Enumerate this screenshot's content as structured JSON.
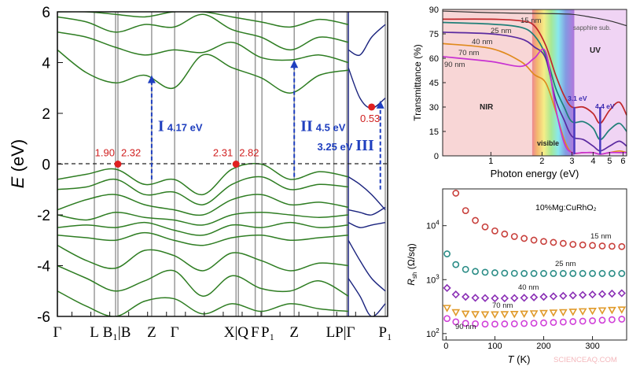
{
  "chart_data": [
    {
      "type": "line",
      "ylabel": "E (eV)",
      "ylabel_main": "E",
      "ylabel_unit": " (eV)",
      "ylim": [
        -6,
        6
      ],
      "yticks": [
        "6",
        "4",
        "2",
        "0",
        "-2",
        "-4",
        "-6"
      ],
      "kpath_labels": [
        {
          "label": "Γ",
          "k": 0
        },
        {
          "label": "L",
          "k": 12.7
        },
        {
          "label": "B₁|B",
          "k": 20.4
        },
        {
          "label": "Z",
          "k": 32.4
        },
        {
          "label": "Γ",
          "k": 40.3
        },
        {
          "label": "X|Q",
          "k": 61.8
        },
        {
          "label": "F",
          "k": 68
        },
        {
          "label": "P₁",
          "k": 70.3
        },
        {
          "label": "Z",
          "k": 81.4
        },
        {
          "label": "LP|Γ",
          "k": 97.3
        },
        {
          "label": "P₁",
          "k": 112.7
        }
      ],
      "high_symmetry_k": [
        0,
        12.7,
        20,
        20.8,
        32.4,
        40.3,
        61.4,
        62.2,
        68,
        70.3,
        81.4,
        95,
        99.5,
        100,
        112.7
      ],
      "xlim": [
        0,
        113.5
      ],
      "fermi_level": 0,
      "colors": {
        "bands_main": "#2e7d22",
        "bands_second": "#1a237e",
        "arrows": "#1f3fbf",
        "points": "#e02020"
      },
      "bands_main_k": [
        0,
        10,
        20,
        30,
        40,
        50,
        60,
        70,
        80,
        90,
        100
      ],
      "bands_main": [
        [
          6.0,
          6.0,
          5.9,
          5.8,
          6.0,
          6.0,
          5.8,
          5.6,
          5.4,
          5.7,
          5.5
        ],
        [
          5.8,
          5.6,
          5.2,
          5.5,
          5.4,
          5.9,
          5.3,
          5.0,
          4.5,
          5.0,
          4.8
        ],
        [
          5.2,
          5.0,
          4.6,
          4.3,
          4.5,
          4.4,
          4.8,
          4.2,
          4.1,
          4.3,
          4.0
        ],
        [
          4.5,
          3.6,
          3.2,
          3.5,
          3.0,
          4.3,
          3.8,
          3.4,
          2.8,
          3.5,
          3.7
        ],
        [
          -0.6,
          -0.4,
          -0.2,
          -0.8,
          -0.6,
          -1.2,
          -0.2,
          0.0,
          -0.6,
          -0.3,
          -0.5
        ],
        [
          -1.0,
          -0.9,
          -0.6,
          -1.2,
          -1.1,
          -1.6,
          -0.8,
          -0.5,
          -1.0,
          -0.8,
          -0.9
        ],
        [
          -1.8,
          -1.4,
          -1.2,
          -1.6,
          -1.8,
          -2.0,
          -1.4,
          -1.2,
          -1.6,
          -1.5,
          -1.7
        ],
        [
          -2.0,
          -2.2,
          -1.9,
          -2.1,
          -2.2,
          -2.4,
          -2.0,
          -1.9,
          -2.0,
          -2.1,
          -2.0
        ],
        [
          -2.5,
          -2.4,
          -2.5,
          -2.3,
          -2.6,
          -2.8,
          -2.4,
          -2.5,
          -2.3,
          -2.5,
          -2.4
        ],
        [
          -2.8,
          -2.9,
          -3.0,
          -2.7,
          -3.0,
          -3.2,
          -2.9,
          -2.8,
          -3.0,
          -2.9,
          -2.8
        ],
        [
          -3.2,
          -3.8,
          -4.1,
          -3.4,
          -3.6,
          -4.2,
          -3.5,
          -3.8,
          -4.2,
          -3.9,
          -4.0
        ],
        [
          -4.0,
          -4.5,
          -5.0,
          -4.6,
          -4.2,
          -5.2,
          -4.4,
          -4.9,
          -5.0,
          -4.6,
          -5.2
        ],
        [
          -5.0,
          -5.6,
          -6.0,
          -5.4,
          -5.3,
          -5.9,
          -5.5,
          -5.8,
          -5.5,
          -5.7,
          -5.8
        ]
      ],
      "bands_second_k": [
        100,
        104,
        108,
        112.7
      ],
      "bands_second": [
        [
          3.8,
          2.6,
          2.2,
          2.6
        ],
        [
          4.5,
          4.3,
          5.0,
          5.5
        ],
        [
          -0.5,
          -0.8,
          -1.2,
          -1.8
        ],
        [
          -1.8,
          -1.9,
          -2.0,
          -1.7
        ],
        [
          -2.3,
          -2.5,
          -2.4,
          -2.3
        ],
        [
          -3.0,
          -3.8,
          -4.5,
          -5.0
        ],
        [
          -4.5,
          -5.2,
          -6.0,
          -5.5
        ]
      ],
      "points": [
        {
          "k": 20.8,
          "E": 0,
          "labels": [
            "1.90",
            "2.32"
          ]
        },
        {
          "k": 61.4,
          "E": 0,
          "labels": [
            "2.31",
            "2.82"
          ]
        },
        {
          "k": 108,
          "E": 2.25,
          "labels": [
            "0.53"
          ]
        }
      ],
      "transitions": [
        {
          "k": 32.4,
          "from": -0.6,
          "to": 3.5,
          "label": "I",
          "energy": "4.17 eV"
        },
        {
          "k": 81.4,
          "from": -0.5,
          "to": 4.1,
          "label": "II",
          "energy": "4.5 eV"
        },
        {
          "k": 111,
          "from": -1.0,
          "to": 2.5,
          "label": "III",
          "energy": "3.25 eV"
        }
      ]
    },
    {
      "type": "line",
      "xlabel": "Photon energy (eV)",
      "ylabel": "Transmittance (%)",
      "xscale": "log",
      "xlim": [
        0.52,
        6.3
      ],
      "ylim": [
        0,
        90
      ],
      "xticks": [
        1,
        2,
        3,
        4,
        5,
        6
      ],
      "yticks": [
        0,
        15,
        30,
        45,
        60,
        75,
        90
      ],
      "regions": [
        {
          "label": "NIR",
          "from": 0.52,
          "to": 1.75
        },
        {
          "label": "visible",
          "from": 1.75,
          "to": 3.1
        },
        {
          "label": "UV",
          "from": 3.1,
          "to": 6.3
        }
      ],
      "markers": [
        {
          "x": 3.1,
          "label": "3.1 eV"
        },
        {
          "x": 4.4,
          "label": "4.4 eV"
        }
      ],
      "x": [
        0.52,
        1,
        1.5,
        1.8,
        2.1,
        2.4,
        2.7,
        3.0,
        3.5,
        4.0,
        4.4,
        5.0,
        5.7,
        6.3
      ],
      "series": [
        {
          "name": "15 nm",
          "color": "#c0282a",
          "values": [
            84,
            84,
            83,
            80,
            68,
            50,
            37,
            30,
            30,
            26,
            20,
            28,
            33,
            25
          ]
        },
        {
          "name": "25 nm",
          "color": "#1f7f78",
          "values": [
            82,
            81,
            79,
            74,
            62,
            42,
            30,
            21,
            21,
            17,
            10,
            16,
            20,
            15
          ]
        },
        {
          "name": "40 nm",
          "color": "#5a2aa0",
          "values": [
            76,
            75,
            72,
            67,
            60,
            35,
            22,
            12,
            10,
            6,
            3,
            6,
            9,
            6
          ]
        },
        {
          "name": "70 nm",
          "color": "#e08a1e",
          "values": [
            69,
            66,
            58,
            50,
            45,
            28,
            10,
            2,
            2,
            2,
            1,
            2,
            3,
            2
          ]
        },
        {
          "name": "90 nm",
          "color": "#c832d2",
          "values": [
            61,
            58,
            55,
            60,
            64,
            30,
            8,
            2,
            2,
            2,
            1,
            2,
            2,
            2
          ]
        }
      ],
      "reference": {
        "name": "sapphire sub.",
        "color": "#333333",
        "x": [
          0.52,
          1,
          2,
          3,
          4,
          5,
          6.3
        ],
        "values": [
          89,
          88,
          87.5,
          87,
          85,
          83,
          80
        ]
      }
    },
    {
      "type": "scatter",
      "title": "10%Mg:CuRhO₂",
      "xlabel": "T (K)",
      "xlabel_main": "T",
      "xlabel_unit": " (K)",
      "ylabel": "Rsh (Ω/sq)",
      "ylabel_main": "R",
      "ylabel_sub": "sh",
      "ylabel_unit": " (Ω/sq)",
      "yscale": "log",
      "xlim": [
        -7,
        370
      ],
      "ylim": [
        76,
        48000
      ],
      "xticks": [
        "0",
        "100",
        "200",
        "300"
      ],
      "yticks": [
        {
          "base": "10",
          "exp": "2"
        },
        {
          "base": "10",
          "exp": "3"
        },
        {
          "base": "10",
          "exp": "4"
        }
      ],
      "series": [
        {
          "name": "15 nm",
          "color": "#c8403c",
          "marker": "circle",
          "x": [
            20,
            40,
            60,
            80,
            100,
            120,
            140,
            160,
            180,
            200,
            220,
            240,
            260,
            280,
            300,
            320,
            340,
            360
          ],
          "values": [
            40000,
            19000,
            12500,
            9500,
            8000,
            7000,
            6300,
            5800,
            5400,
            5100,
            4900,
            4700,
            4500,
            4400,
            4300,
            4200,
            4150,
            4100
          ]
        },
        {
          "name": "25 nm",
          "color": "#2a8c86",
          "marker": "circle",
          "x": [
            2,
            20,
            40,
            60,
            80,
            100,
            120,
            140,
            160,
            180,
            200,
            220,
            240,
            260,
            280,
            300,
            320,
            340,
            360
          ],
          "values": [
            3000,
            1900,
            1550,
            1420,
            1370,
            1340,
            1320,
            1310,
            1300,
            1300,
            1300,
            1300,
            1300,
            1300,
            1300,
            1300,
            1300,
            1300,
            1300
          ]
        },
        {
          "name": "40 nm",
          "color": "#8a2fb5",
          "marker": "diamond",
          "x": [
            2,
            20,
            40,
            60,
            80,
            100,
            120,
            140,
            160,
            180,
            200,
            220,
            240,
            260,
            280,
            300,
            320,
            340,
            360
          ],
          "values": [
            700,
            530,
            480,
            460,
            455,
            450,
            450,
            455,
            460,
            470,
            480,
            490,
            500,
            510,
            520,
            530,
            540,
            550,
            560
          ]
        },
        {
          "name": "70 nm",
          "color": "#e09a2a",
          "marker": "triangle",
          "x": [
            2,
            20,
            40,
            60,
            80,
            100,
            120,
            140,
            160,
            180,
            200,
            220,
            240,
            260,
            280,
            300,
            320,
            340,
            360
          ],
          "values": [
            300,
            250,
            235,
            230,
            228,
            228,
            230,
            232,
            235,
            238,
            242,
            246,
            250,
            255,
            260,
            265,
            270,
            275,
            280
          ]
        },
        {
          "name": "90 nm",
          "color": "#d040d8",
          "marker": "circle",
          "x": [
            2,
            20,
            40,
            60,
            80,
            100,
            120,
            140,
            160,
            180,
            200,
            220,
            240,
            260,
            280,
            300,
            320,
            340,
            360
          ],
          "values": [
            190,
            165,
            155,
            152,
            150,
            150,
            151,
            152,
            154,
            156,
            158,
            161,
            164,
            167,
            170,
            173,
            177,
            181,
            185
          ]
        }
      ]
    }
  ],
  "watermark": "SCIENCEAQ.COM"
}
